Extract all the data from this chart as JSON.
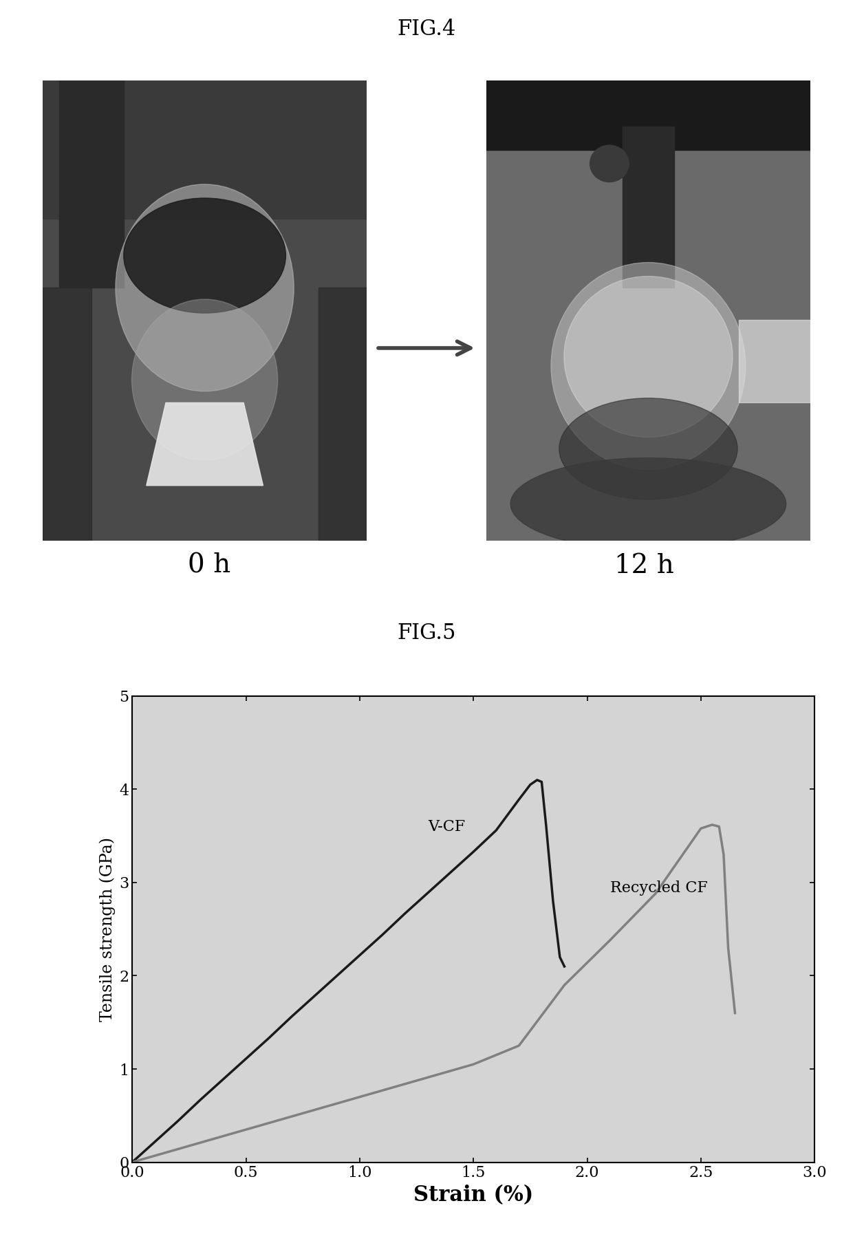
{
  "fig4_title": "FIG.4",
  "fig5_title": "FIG.5",
  "label_0h": "0 h",
  "label_12h": "12 h",
  "vcf_label": "V-CF",
  "recycled_label": "Recycled CF",
  "xlabel": "Strain (%)",
  "ylabel": "Tensile strength (GPa)",
  "xlim": [
    0.0,
    3.0
  ],
  "ylim": [
    0,
    5
  ],
  "xticks": [
    0.0,
    0.5,
    1.0,
    1.5,
    2.0,
    2.5,
    3.0
  ],
  "yticks": [
    0,
    1,
    2,
    3,
    4,
    5
  ],
  "vcf_color": "#1a1a1a",
  "recycled_color": "#808080",
  "background_color": "#ffffff",
  "plot_bg_color": "#d4d4d4",
  "vcf_x": [
    0.0,
    0.05,
    0.1,
    0.2,
    0.3,
    0.4,
    0.5,
    0.6,
    0.7,
    0.8,
    0.9,
    1.0,
    1.1,
    1.2,
    1.3,
    1.4,
    1.5,
    1.6,
    1.7,
    1.75,
    1.78,
    1.8,
    1.82,
    1.85,
    1.88,
    1.9
  ],
  "vcf_y": [
    0.0,
    0.11,
    0.22,
    0.44,
    0.67,
    0.89,
    1.11,
    1.33,
    1.56,
    1.78,
    2.0,
    2.22,
    2.44,
    2.67,
    2.89,
    3.11,
    3.33,
    3.56,
    3.89,
    4.05,
    4.1,
    4.08,
    3.6,
    2.8,
    2.2,
    2.1
  ],
  "recycled_x": [
    0.0,
    0.1,
    0.2,
    0.3,
    0.5,
    0.7,
    1.0,
    1.2,
    1.5,
    1.7,
    1.9,
    2.1,
    2.3,
    2.5,
    2.55,
    2.58,
    2.6,
    2.62,
    2.65
  ],
  "recycled_y": [
    0.0,
    0.07,
    0.14,
    0.21,
    0.35,
    0.49,
    0.7,
    0.84,
    1.05,
    1.25,
    1.9,
    2.38,
    2.88,
    3.58,
    3.62,
    3.6,
    3.3,
    2.3,
    1.6
  ],
  "linewidth": 2.5,
  "fig4_label_fontsize": 22,
  "axis_label_fontsize": 18,
  "tick_fontsize": 16,
  "annotation_fontsize": 16
}
